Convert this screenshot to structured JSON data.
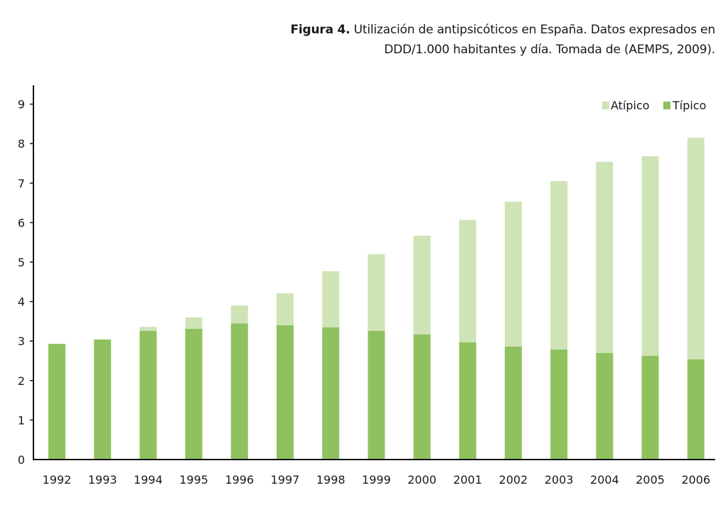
{
  "caption": {
    "lead": "Figura 4.",
    "line1": " Utilización de antipsicóticos en España. Datos expresados en",
    "line2": "DDD/1.000 habitantes y día. Tomada de (AEMPS, 2009)."
  },
  "colors": {
    "tipico": "#8fc25f",
    "atipico": "#cfe4b6",
    "axis": "#111111"
  },
  "chart_data": {
    "type": "bar",
    "stacked": true,
    "title": "Utilización de antipsicóticos en España (DDD/1.000 habitantes y día)",
    "xlabel": "",
    "ylabel": "",
    "ylim": [
      0,
      9.4
    ],
    "yticks": [
      0,
      1,
      2,
      3,
      4,
      5,
      6,
      7,
      8,
      9
    ],
    "grid": false,
    "legend_position": "top-right",
    "categories": [
      "1992",
      "1993",
      "1994",
      "1995",
      "1996",
      "1997",
      "1998",
      "1999",
      "2000",
      "2001",
      "2002",
      "2003",
      "2004",
      "2005",
      "2006"
    ],
    "series": [
      {
        "name": "Típico",
        "values": [
          2.93,
          3.04,
          3.26,
          3.31,
          3.45,
          3.4,
          3.35,
          3.26,
          3.17,
          2.97,
          2.86,
          2.79,
          2.7,
          2.63,
          2.54
        ]
      },
      {
        "name": "Atípico",
        "values": [
          0.0,
          0.0,
          0.1,
          0.29,
          0.45,
          0.81,
          1.42,
          1.94,
          2.5,
          3.1,
          3.67,
          4.26,
          4.84,
          5.05,
          5.61
        ]
      }
    ],
    "legend": [
      {
        "name": "Atípico",
        "color_key": "atipico"
      },
      {
        "name": "Típico",
        "color_key": "tipico"
      }
    ]
  }
}
